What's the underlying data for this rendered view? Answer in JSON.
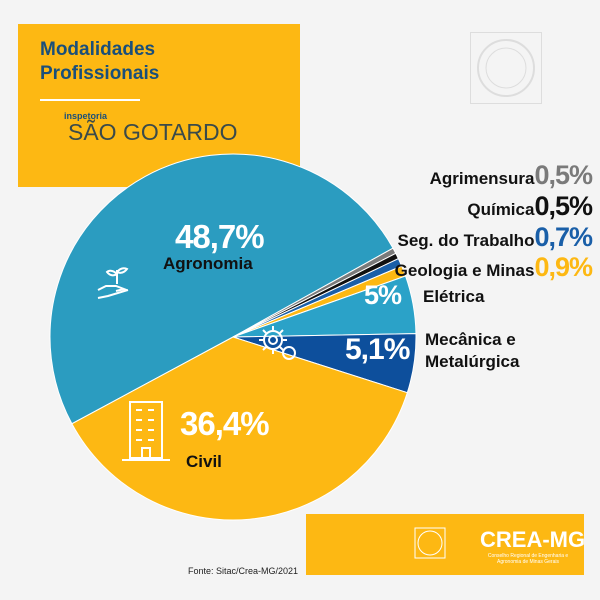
{
  "header": {
    "title_line1": "Modalidades",
    "title_line2": "Profissionais",
    "subtitle": "inspetoria",
    "city": "SÃO GOTARDO"
  },
  "chart_data": {
    "type": "pie",
    "title": "Modalidades Profissionais",
    "slices": [
      {
        "name": "Agronomia",
        "value": 48.7,
        "label": "48,7%",
        "color": "#2b9cc0"
      },
      {
        "name": "Agrimensura",
        "value": 0.5,
        "label": "0,5%",
        "color": "#7a7a7a"
      },
      {
        "name": "Química",
        "value": 0.5,
        "label": "0,5%",
        "color": "#111111"
      },
      {
        "name": "Seg. do Trabalho",
        "value": 0.7,
        "label": "0,7%",
        "color": "#1a5fa8"
      },
      {
        "name": "Geologia e Minas",
        "value": 0.9,
        "label": "0,9%",
        "color": "#fdb813"
      },
      {
        "name": "Elétrica",
        "value": 5,
        "label": "5%",
        "color": "#2ba2c8"
      },
      {
        "name": "Mecânica e Metalúrgica",
        "value": 5.1,
        "label": "5,1%",
        "color": "#0d4f9c"
      },
      {
        "name": "Civil",
        "value": 36.4,
        "label": "36,4%",
        "color": "#fdb813"
      }
    ]
  },
  "labels": {
    "mec1": "Mecânica e",
    "mec2": "Metalúrgica"
  },
  "footer": {
    "source": "Fonte: Sitac/Crea-MG/2021",
    "logo": "CREA-MG",
    "logo_sub": "Conselho Regional de Engenharia e Agronomia de Minas Gerais"
  }
}
